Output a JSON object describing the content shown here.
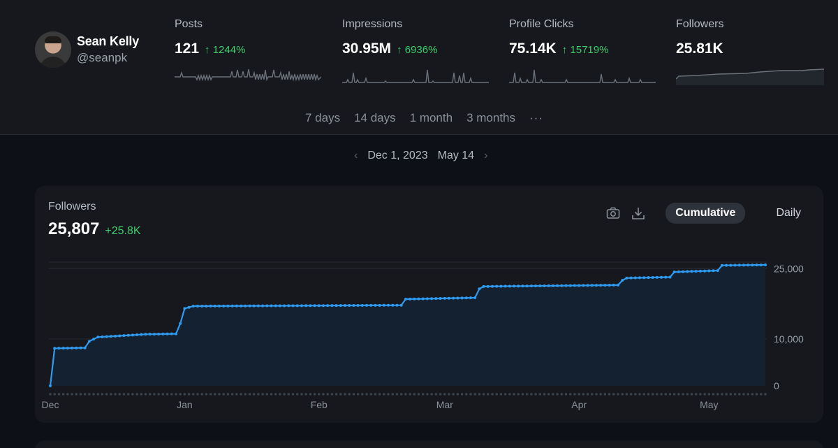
{
  "profile": {
    "name": "Sean Kelly",
    "handle": "@seanpk"
  },
  "stats": [
    {
      "label": "Posts",
      "value": "121",
      "change": "1244%",
      "up": true
    },
    {
      "label": "Impressions",
      "value": "30.95M",
      "change": "6936%",
      "up": true
    },
    {
      "label": "Profile Clicks",
      "value": "75.14K",
      "change": "15719%",
      "up": true
    },
    {
      "label": "Followers",
      "value": "25.81K",
      "change": "",
      "up": false
    }
  ],
  "ranges": [
    "7 days",
    "14 days",
    "1 month",
    "3 months"
  ],
  "more_label": "···",
  "date_range": {
    "start": "Dec 1, 2023",
    "end": "May 14"
  },
  "card": {
    "title": "Followers",
    "value": "25,807",
    "change": "+25.8K",
    "cumulative_label": "Cumulative",
    "daily_label": "Daily"
  },
  "colors": {
    "accent": "#2f9bf0",
    "positive": "#3fcf6b",
    "background": "#0d1117",
    "panel": "#16181d"
  },
  "icons": [
    "camera-icon",
    "download-icon",
    "arrow-up-icon",
    "chevron-left-icon",
    "chevron-right-icon"
  ],
  "chart_data": {
    "type": "area",
    "title": "Followers",
    "x": [
      "2023-12-01",
      "2023-12-02",
      "2023-12-09",
      "2023-12-10",
      "2023-12-12",
      "2023-12-16",
      "2023-12-23",
      "2023-12-30",
      "2023-12-31",
      "2024-01-01",
      "2024-01-03",
      "2024-02-20",
      "2024-02-21",
      "2024-03-08",
      "2024-03-09",
      "2024-03-10",
      "2024-04-10",
      "2024-04-11",
      "2024-04-12",
      "2024-04-22",
      "2024-04-23",
      "2024-05-03",
      "2024-05-04",
      "2024-05-14"
    ],
    "series": [
      {
        "values": [
          0,
          8000,
          8100,
          9500,
          10400,
          10600,
          11000,
          11100,
          13300,
          16500,
          17000,
          17200,
          18500,
          18800,
          20700,
          21200,
          21500,
          22500,
          23000,
          23200,
          24300,
          24600,
          25700,
          25807
        ]
      }
    ],
    "ylim": [
      0,
      27000
    ],
    "yticks": [
      0,
      10000,
      25000
    ],
    "ytick_labels": [
      "0",
      "10,000",
      "25,000"
    ],
    "xtick_labels": [
      "Dec",
      "Jan",
      "Feb",
      "Mar",
      "Apr",
      "May"
    ],
    "grid": true,
    "legend": "none"
  }
}
